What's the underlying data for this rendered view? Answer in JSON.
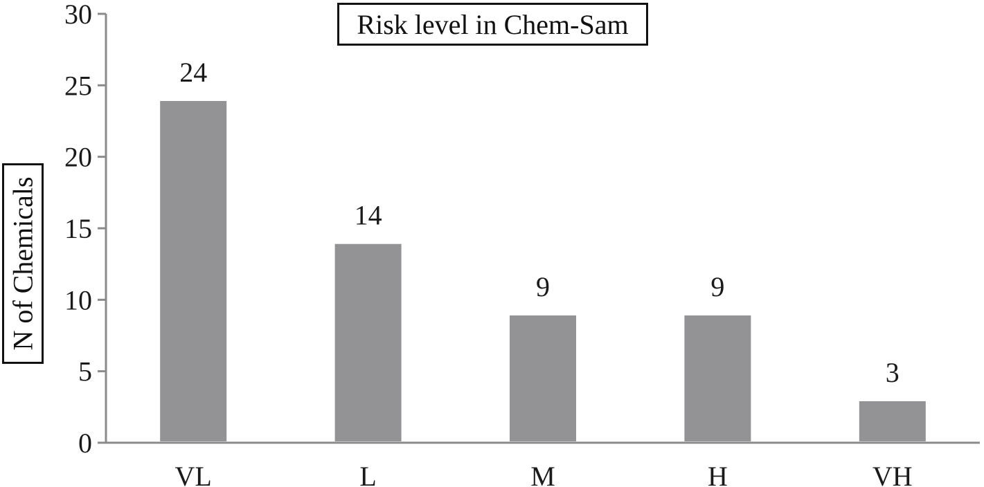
{
  "chart_data": {
    "type": "bar",
    "title": "Risk level in Chem-Sam",
    "xlabel": "",
    "ylabel": "N of Chemicals",
    "categories": [
      "VL",
      "L",
      "M",
      "H",
      "VH"
    ],
    "values": [
      24,
      14,
      9,
      9,
      3
    ],
    "data_labels": [
      "24",
      "14",
      "9",
      "9",
      "3"
    ],
    "ylim": [
      0,
      30
    ],
    "yticks": [
      "0",
      "5",
      "10",
      "15",
      "20",
      "25",
      "30"
    ],
    "grid": false,
    "legend": "none",
    "bar_color": "#939395",
    "bar_edge_color": "#ffffff",
    "axis_color": "#8a8a8a"
  }
}
